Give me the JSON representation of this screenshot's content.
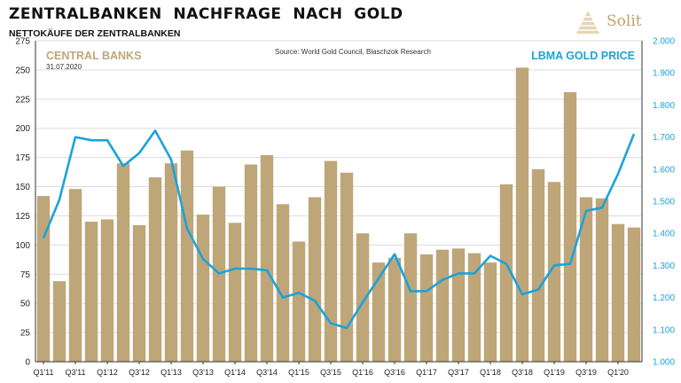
{
  "header": {
    "title": "ZENTRALBANKEN  NACHFRAGE  NACH  GOLD",
    "subtitle": "NETTOKÄUFE DER ZENTRALBANKEN",
    "logo_text": "Solit"
  },
  "chart_data": {
    "type": "bar",
    "source": "Source: World Gold Council, Blaschzok Research",
    "date": "31.07.2020",
    "x_tick_labels": [
      "Q1'11",
      "Q3'11",
      "Q1'12",
      "Q3'12",
      "Q1'13",
      "Q3'13",
      "Q1'14",
      "Q3'14",
      "Q1'15",
      "Q3'15",
      "Q1'16",
      "Q3'16",
      "Q1'17",
      "Q3'17",
      "Q1'18",
      "Q3'18",
      "Q1'19",
      "Q3'19",
      "Q1'20"
    ],
    "left_axis": {
      "ylim": [
        0,
        275
      ],
      "ticks": [
        0,
        25,
        50,
        75,
        100,
        125,
        150,
        175,
        200,
        225,
        250,
        275
      ]
    },
    "right_axis": {
      "ylim": [
        1000,
        2000
      ],
      "ticks": [
        "1.000",
        "1.100",
        "1.200",
        "1.300",
        "1.400",
        "1.500",
        "1.600",
        "1.700",
        "1.800",
        "1.900",
        "2.000"
      ]
    },
    "series": [
      {
        "name": "CENTRAL BANKS",
        "kind": "bar",
        "axis": "left",
        "color": "#bfa679",
        "values": [
          142,
          69,
          148,
          120,
          122,
          170,
          117,
          158,
          170,
          181,
          126,
          150,
          119,
          169,
          177,
          135,
          103,
          141,
          172,
          162,
          110,
          85,
          89,
          110,
          92,
          96,
          97,
          93,
          85,
          152,
          252,
          165,
          154,
          231,
          141,
          140,
          118,
          115
        ]
      },
      {
        "name": "LBMA GOLD PRICE",
        "kind": "line",
        "axis": "right",
        "color": "#1aa3d9",
        "values": [
          1385,
          1505,
          1700,
          1690,
          1690,
          1610,
          1650,
          1720,
          1630,
          1415,
          1320,
          1275,
          1290,
          1290,
          1285,
          1200,
          1215,
          1190,
          1120,
          1105,
          1185,
          1260,
          1335,
          1220,
          1220,
          1255,
          1275,
          1275,
          1330,
          1305,
          1210,
          1225,
          1300,
          1305,
          1470,
          1480,
          1585,
          1710
        ]
      }
    ]
  }
}
